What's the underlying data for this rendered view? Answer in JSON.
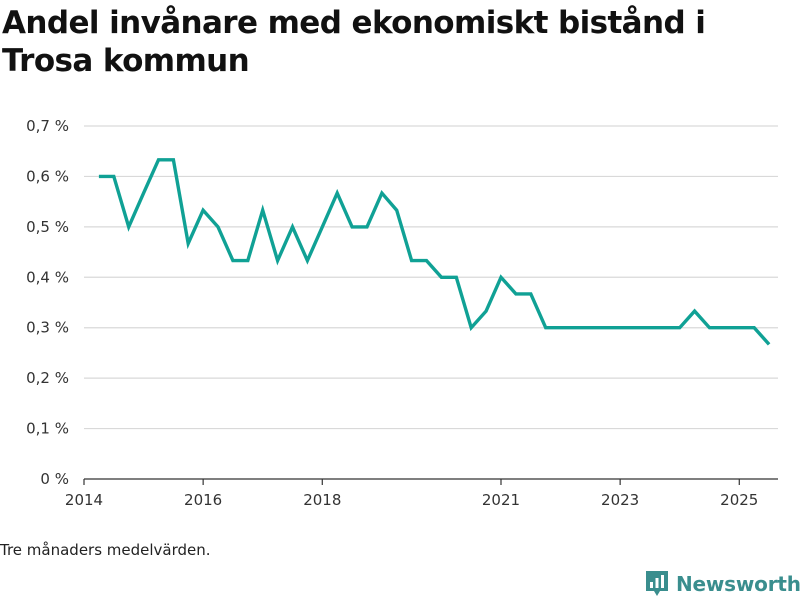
{
  "title": "Andel invånare med ekonomiskt bistånd i Trosa kommun",
  "footnote": "Tre månaders medelvärden.",
  "brand": {
    "name": "Newsworthy",
    "icon": "newsworthy-logo-icon"
  },
  "colors": {
    "line": "#10a195",
    "grid": "#d9d9d9",
    "axis": "#333333",
    "brand": "#3a8e8e"
  },
  "chart_data": {
    "type": "line",
    "title": "Andel invånare med ekonomiskt bistånd i Trosa kommun",
    "xlabel": "",
    "ylabel": "",
    "ylim": [
      0,
      0.7
    ],
    "xlim": [
      2014.0,
      2025.65
    ],
    "grid": true,
    "y_ticks": [
      {
        "value": 0,
        "label": "0 %"
      },
      {
        "value": 0.1,
        "label": "0,1 %"
      },
      {
        "value": 0.2,
        "label": "0,2 %"
      },
      {
        "value": 0.3,
        "label": "0,3 %"
      },
      {
        "value": 0.4,
        "label": "0,4 %"
      },
      {
        "value": 0.5,
        "label": "0,5 %"
      },
      {
        "value": 0.6,
        "label": "0,6 %"
      },
      {
        "value": 0.7,
        "label": "0,7 %"
      }
    ],
    "x_ticks": [
      {
        "value": 2014.0,
        "label": "2014"
      },
      {
        "value": 2016.0,
        "label": "2016"
      },
      {
        "value": 2018.0,
        "label": "2018"
      },
      {
        "value": 2021.0,
        "label": "2021"
      },
      {
        "value": 2023.0,
        "label": "2023"
      },
      {
        "value": 2025.0,
        "label": "2025"
      }
    ],
    "series": [
      {
        "name": "Andel invånare med ekonomiskt bistånd",
        "x": [
          2014.25,
          2014.5,
          2014.75,
          2015.0,
          2015.25,
          2015.5,
          2015.75,
          2016.0,
          2016.25,
          2016.5,
          2016.75,
          2017.0,
          2017.25,
          2017.5,
          2017.75,
          2018.0,
          2018.25,
          2018.5,
          2018.75,
          2019.0,
          2019.25,
          2019.5,
          2019.75,
          2020.0,
          2020.25,
          2020.5,
          2020.75,
          2021.0,
          2021.25,
          2021.5,
          2021.75,
          2022.0,
          2022.25,
          2022.5,
          2022.75,
          2023.0,
          2023.25,
          2023.5,
          2023.75,
          2024.0,
          2024.25,
          2024.5,
          2024.75,
          2025.0,
          2025.25,
          2025.5
        ],
        "values": [
          0.6,
          0.6,
          0.5,
          0.567,
          0.633,
          0.633,
          0.467,
          0.533,
          0.5,
          0.433,
          0.433,
          0.533,
          0.433,
          0.5,
          0.433,
          0.5,
          0.567,
          0.5,
          0.5,
          0.567,
          0.533,
          0.433,
          0.433,
          0.4,
          0.4,
          0.3,
          0.333,
          0.4,
          0.367,
          0.367,
          0.3,
          0.3,
          0.3,
          0.3,
          0.3,
          0.3,
          0.3,
          0.3,
          0.3,
          0.3,
          0.333,
          0.3,
          0.3,
          0.3,
          0.3,
          0.267
        ]
      }
    ]
  }
}
